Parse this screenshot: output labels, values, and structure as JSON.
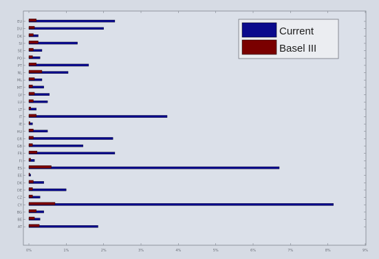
{
  "chart_data": {
    "type": "bar",
    "orientation": "horizontal",
    "categories": [
      "EU",
      "DU",
      "DK",
      "SI",
      "SE",
      "PO",
      "PT",
      "NL",
      "ML",
      "MT",
      "LV",
      "LU",
      "LT",
      "IT",
      "IE",
      "HU",
      "GR",
      "GB",
      "FR",
      "FI",
      "ES",
      "EE",
      "DK",
      "DE",
      "CZ",
      "CY",
      "BG",
      "BE",
      "AT"
    ],
    "series": [
      {
        "name": "Current",
        "color": "#0a0a8c",
        "values": [
          2.3,
          2.0,
          0.25,
          1.3,
          0.35,
          0.3,
          1.6,
          1.05,
          0.35,
          0.4,
          0.55,
          0.5,
          0.2,
          3.7,
          0.1,
          0.5,
          2.25,
          1.45,
          2.3,
          0.15,
          6.7,
          0.05,
          0.4,
          1.0,
          0.3,
          8.15,
          0.4,
          0.3,
          1.85
        ]
      },
      {
        "name": "Basel III",
        "color": "#7a0000",
        "values": [
          0.2,
          0.15,
          0.12,
          0.25,
          0.12,
          0.1,
          0.2,
          0.35,
          0.15,
          0.1,
          0.15,
          0.12,
          0.05,
          0.2,
          0.03,
          0.12,
          0.12,
          0.1,
          0.22,
          0.05,
          0.6,
          0.02,
          0.12,
          0.1,
          0.1,
          0.7,
          0.2,
          0.15,
          0.28
        ]
      }
    ],
    "xtick_labels": [
      "0%",
      "1%",
      "2%",
      "3%",
      "4%",
      "5%",
      "6%",
      "7%",
      "8%",
      "9%"
    ],
    "xlim": [
      0,
      9
    ],
    "legend_position": "top-right",
    "grid": false,
    "title": "",
    "xlabel": "",
    "ylabel": ""
  }
}
